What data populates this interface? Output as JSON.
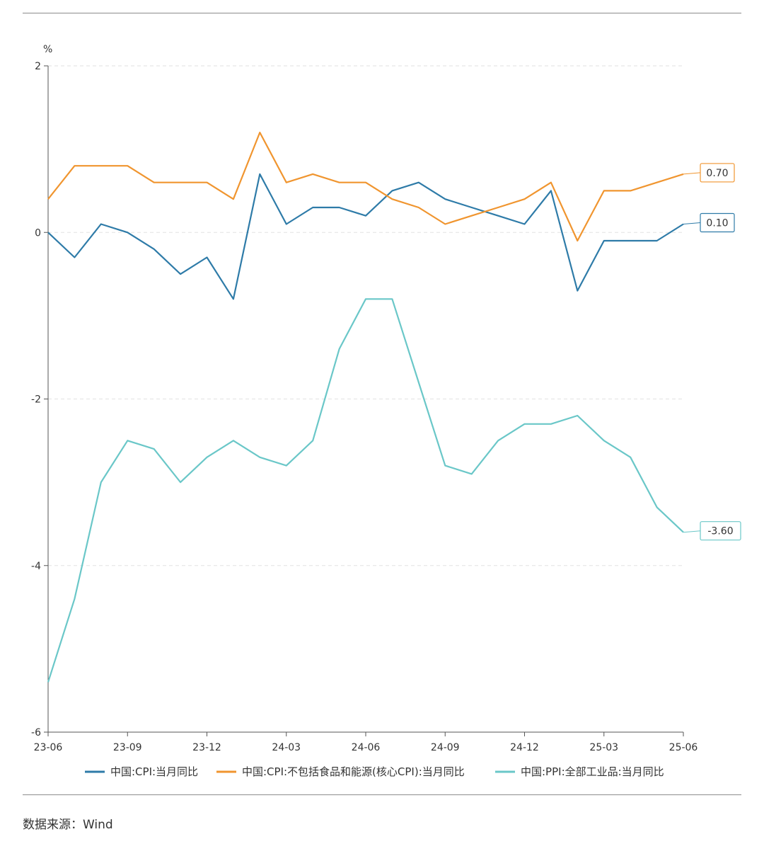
{
  "chart_data": {
    "type": "line",
    "title": "",
    "ylabel": "%",
    "xlabel": "",
    "ylim": [
      -6,
      2
    ],
    "yticks": [
      -6,
      -4,
      -2,
      0,
      2
    ],
    "ytick_labels": [
      "-6",
      "-4",
      "-2",
      "0",
      "2"
    ],
    "xtick_labels": [
      "23-06",
      "23-09",
      "23-12",
      "24-03",
      "24-06",
      "24-09",
      "24-12",
      "25-03",
      "25-06"
    ],
    "xtick_indices": [
      0,
      3,
      6,
      9,
      12,
      15,
      18,
      21,
      24
    ],
    "gridlines": "horizontal dashed",
    "legend_position": "bottom",
    "x": [
      "23-06",
      "23-07",
      "23-08",
      "23-09",
      "23-10",
      "23-11",
      "23-12",
      "24-01",
      "24-02",
      "24-03",
      "24-04",
      "24-05",
      "24-06",
      "24-07",
      "24-08",
      "24-09",
      "24-10",
      "24-11",
      "24-12",
      "25-01",
      "25-02",
      "25-03",
      "25-04",
      "25-05",
      "25-06"
    ],
    "series": [
      {
        "name": "中国:CPI:当月同比",
        "color": "#2e7ba8",
        "values": [
          0.0,
          -0.3,
          0.1,
          0.0,
          -0.2,
          -0.5,
          -0.3,
          -0.8,
          0.7,
          0.1,
          0.3,
          0.3,
          0.2,
          0.5,
          0.6,
          0.4,
          0.3,
          0.2,
          0.1,
          0.5,
          -0.7,
          -0.1,
          -0.1,
          -0.1,
          0.1
        ],
        "end_label": "0.10"
      },
      {
        "name": "中国:CPI:不包括食品和能源(核心CPI):当月同比",
        "color": "#f0952f",
        "values": [
          0.4,
          0.8,
          0.8,
          0.8,
          0.6,
          0.6,
          0.6,
          0.4,
          1.2,
          0.6,
          0.7,
          0.6,
          0.6,
          0.4,
          0.3,
          0.1,
          0.2,
          0.3,
          0.4,
          0.6,
          -0.1,
          0.5,
          0.5,
          0.6,
          0.7
        ],
        "end_label": "0.70"
      },
      {
        "name": "中国:PPI:全部工业品:当月同比",
        "color": "#6ac7c8",
        "values": [
          -5.4,
          -4.4,
          -3.0,
          -2.5,
          -2.6,
          -3.0,
          -2.7,
          -2.5,
          -2.7,
          -2.8,
          -2.5,
          -1.4,
          -0.8,
          -0.8,
          -1.8,
          -2.8,
          -2.9,
          -2.5,
          -2.3,
          -2.3,
          -2.2,
          -2.5,
          -2.7,
          -3.3,
          -3.6
        ],
        "end_label": "-3.60"
      }
    ]
  },
  "footer": {
    "source": "数据来源：Wind"
  }
}
